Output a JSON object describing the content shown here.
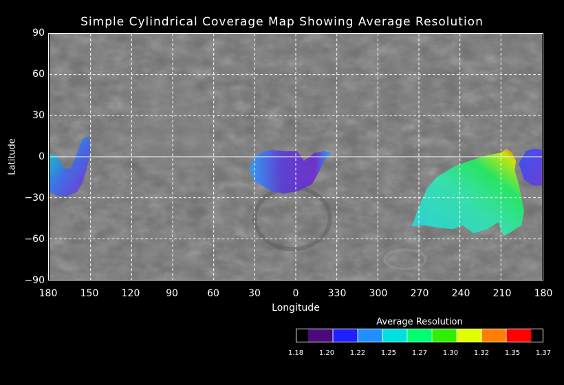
{
  "title": "Simple Cylindrical Coverage Map Showing Average Resolution",
  "xlabel": "Longitude",
  "ylabel": "Latitude",
  "x_ticks": [
    "180",
    "150",
    "120",
    "90",
    "60",
    "30",
    "0",
    "330",
    "300",
    "270",
    "240",
    "210",
    "180"
  ],
  "y_ticks": [
    "90",
    "60",
    "30",
    "0",
    "−30",
    "−60",
    "−90"
  ],
  "colorbar": {
    "title": "Average Resolution",
    "ticks": [
      "1.18",
      "1.20",
      "1.22",
      "1.25",
      "1.27",
      "1.30",
      "1.32",
      "1.35",
      "1.37"
    ],
    "colors": [
      "#4a0a7a",
      "#2020ff",
      "#1e90ff",
      "#00e0e0",
      "#00ff70",
      "#2ef000",
      "#e0ff00",
      "#ff8000",
      "#ff0000"
    ]
  },
  "coverage_regions": [
    {
      "name": "west-edge",
      "lon": [
        150,
        180
      ],
      "lat": [
        -28,
        15
      ]
    },
    {
      "name": "center",
      "lon": [
        330,
        30
      ],
      "lat": [
        -25,
        5
      ]
    },
    {
      "name": "east-large",
      "lon": [
        200,
        280
      ],
      "lat": [
        -58,
        5
      ]
    },
    {
      "name": "east-edge",
      "lon": [
        180,
        195
      ],
      "lat": [
        -20,
        7
      ]
    }
  ]
}
